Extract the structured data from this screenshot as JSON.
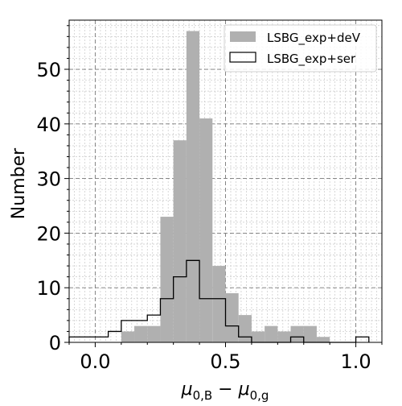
{
  "chart_data": {
    "type": "bar",
    "xlabel": "μ0,B − μ0,g",
    "xlabel_parts": {
      "mu": "μ",
      "sub1": "0,B",
      "minus": " − ",
      "sub2": "0,g"
    },
    "ylabel": "Number",
    "xlim": [
      -0.1,
      1.1
    ],
    "ylim": [
      0,
      59
    ],
    "x_ticks": [
      0.0,
      0.5,
      1.0
    ],
    "x_tick_labels": [
      "0.0",
      "0.5",
      "1.0"
    ],
    "y_ticks": [
      0,
      10,
      20,
      30,
      40,
      50
    ],
    "y_tick_labels": [
      "0",
      "10",
      "20",
      "30",
      "40",
      "50"
    ],
    "grid": true,
    "legend_position": "top-right",
    "series": [
      {
        "name": "LSBG_exp+deV",
        "style": "filled",
        "color": "#b0b0b0",
        "bin_edges": [
          0.1,
          0.15,
          0.2,
          0.25,
          0.3,
          0.35,
          0.4,
          0.45,
          0.5,
          0.55,
          0.6,
          0.65,
          0.7,
          0.75,
          0.8,
          0.85,
          0.9
        ],
        "counts": [
          2,
          3,
          3,
          23,
          37,
          57,
          41,
          14,
          9,
          5,
          2,
          3,
          2,
          3,
          3,
          1
        ]
      },
      {
        "name": "LSBG_exp+ser",
        "style": "step",
        "color": "#000000",
        "bin_edges": [
          -0.1,
          -0.05,
          0.0,
          0.05,
          0.1,
          0.15,
          0.2,
          0.25,
          0.3,
          0.35,
          0.4,
          0.45,
          0.5,
          0.55,
          0.6,
          0.65,
          0.7,
          0.75,
          0.8,
          0.85,
          0.9,
          0.95,
          1.0,
          1.05
        ],
        "counts": [
          1,
          1,
          1,
          2,
          4,
          4,
          5,
          8,
          12,
          15,
          8,
          8,
          3,
          1,
          0,
          0,
          0,
          1,
          0,
          0,
          0,
          0,
          1
        ]
      }
    ]
  }
}
